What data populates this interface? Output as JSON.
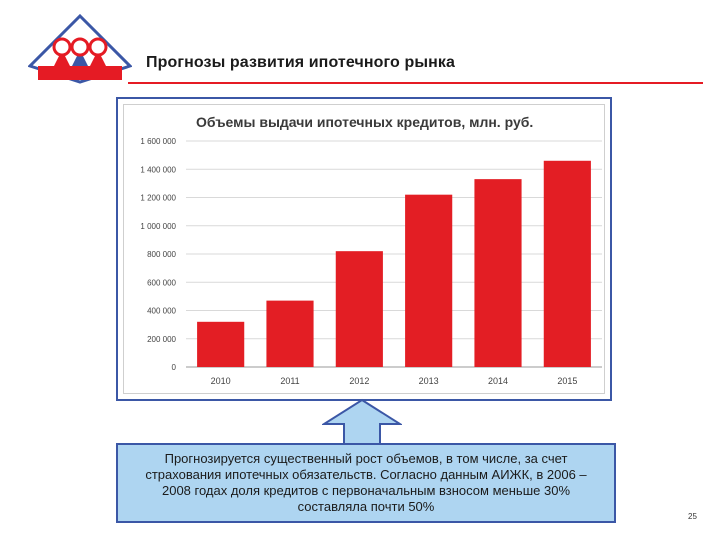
{
  "slide": {
    "title": "Прогнозы развития ипотечного рынка",
    "page_number": "25"
  },
  "callout": {
    "text": "Прогнозируется существенный рост объемов, в том числе, за счет страхования ипотечных обязательств. Согласно данным АИЖК, в 2006 – 2008 годах доля кредитов с первоначальным взносом меньше 30% составляла почти 50%"
  },
  "colors": {
    "bar": "#e31e24",
    "accent_red": "#e51b24",
    "frame_blue": "#3b57a6",
    "callout_fill": "#aed5f1"
  },
  "chart_data": {
    "type": "bar",
    "title": "Объемы выдачи ипотечных кредитов, млн. руб.",
    "categories": [
      "2010",
      "2011",
      "2012",
      "2013",
      "2014",
      "2015"
    ],
    "values": [
      320000,
      470000,
      820000,
      1220000,
      1330000,
      1460000
    ],
    "ylim": [
      0,
      1600000
    ],
    "yticks": [
      0,
      200000,
      400000,
      600000,
      800000,
      1000000,
      1200000,
      1400000,
      1600000
    ],
    "ytick_labels": [
      "0",
      "200 000",
      "400 000",
      "600 000",
      "800 000",
      "1 000 000",
      "1 200 000",
      "1 400 000",
      "1 600 000"
    ],
    "grid": true,
    "legend": "none"
  }
}
